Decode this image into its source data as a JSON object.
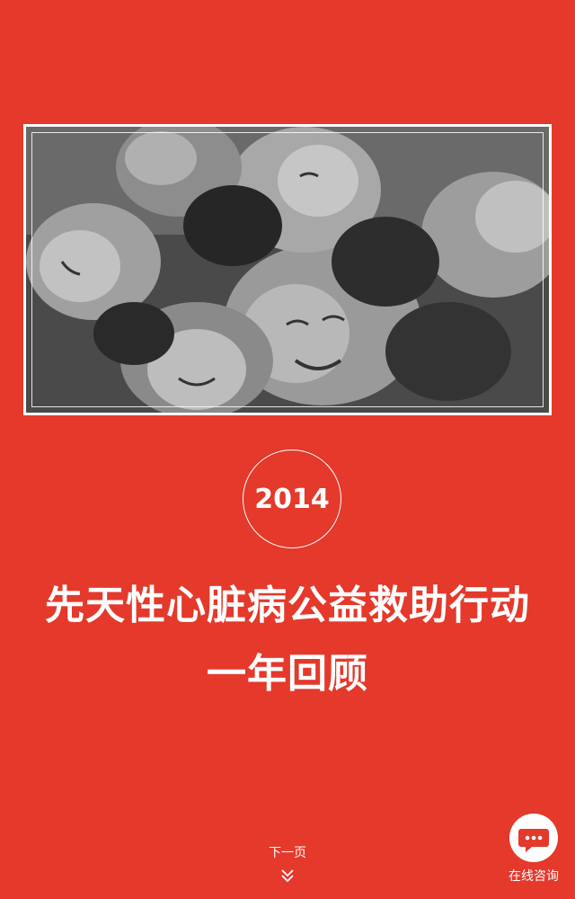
{
  "photo": {
    "description_icon": "children-group-photo"
  },
  "year_badge": {
    "text": "2014"
  },
  "title": {
    "line1": "先天性心脏病公益救助行动",
    "line2": "一年回顾"
  },
  "next_page": {
    "label": "下一页",
    "icon": "chevron-down-icon"
  },
  "consult": {
    "label": "在线咨询",
    "icon": "chat-bubble-icon"
  },
  "colors": {
    "background": "#e4392b",
    "text": "#ffffff",
    "chat_dots": "#e4392b"
  }
}
